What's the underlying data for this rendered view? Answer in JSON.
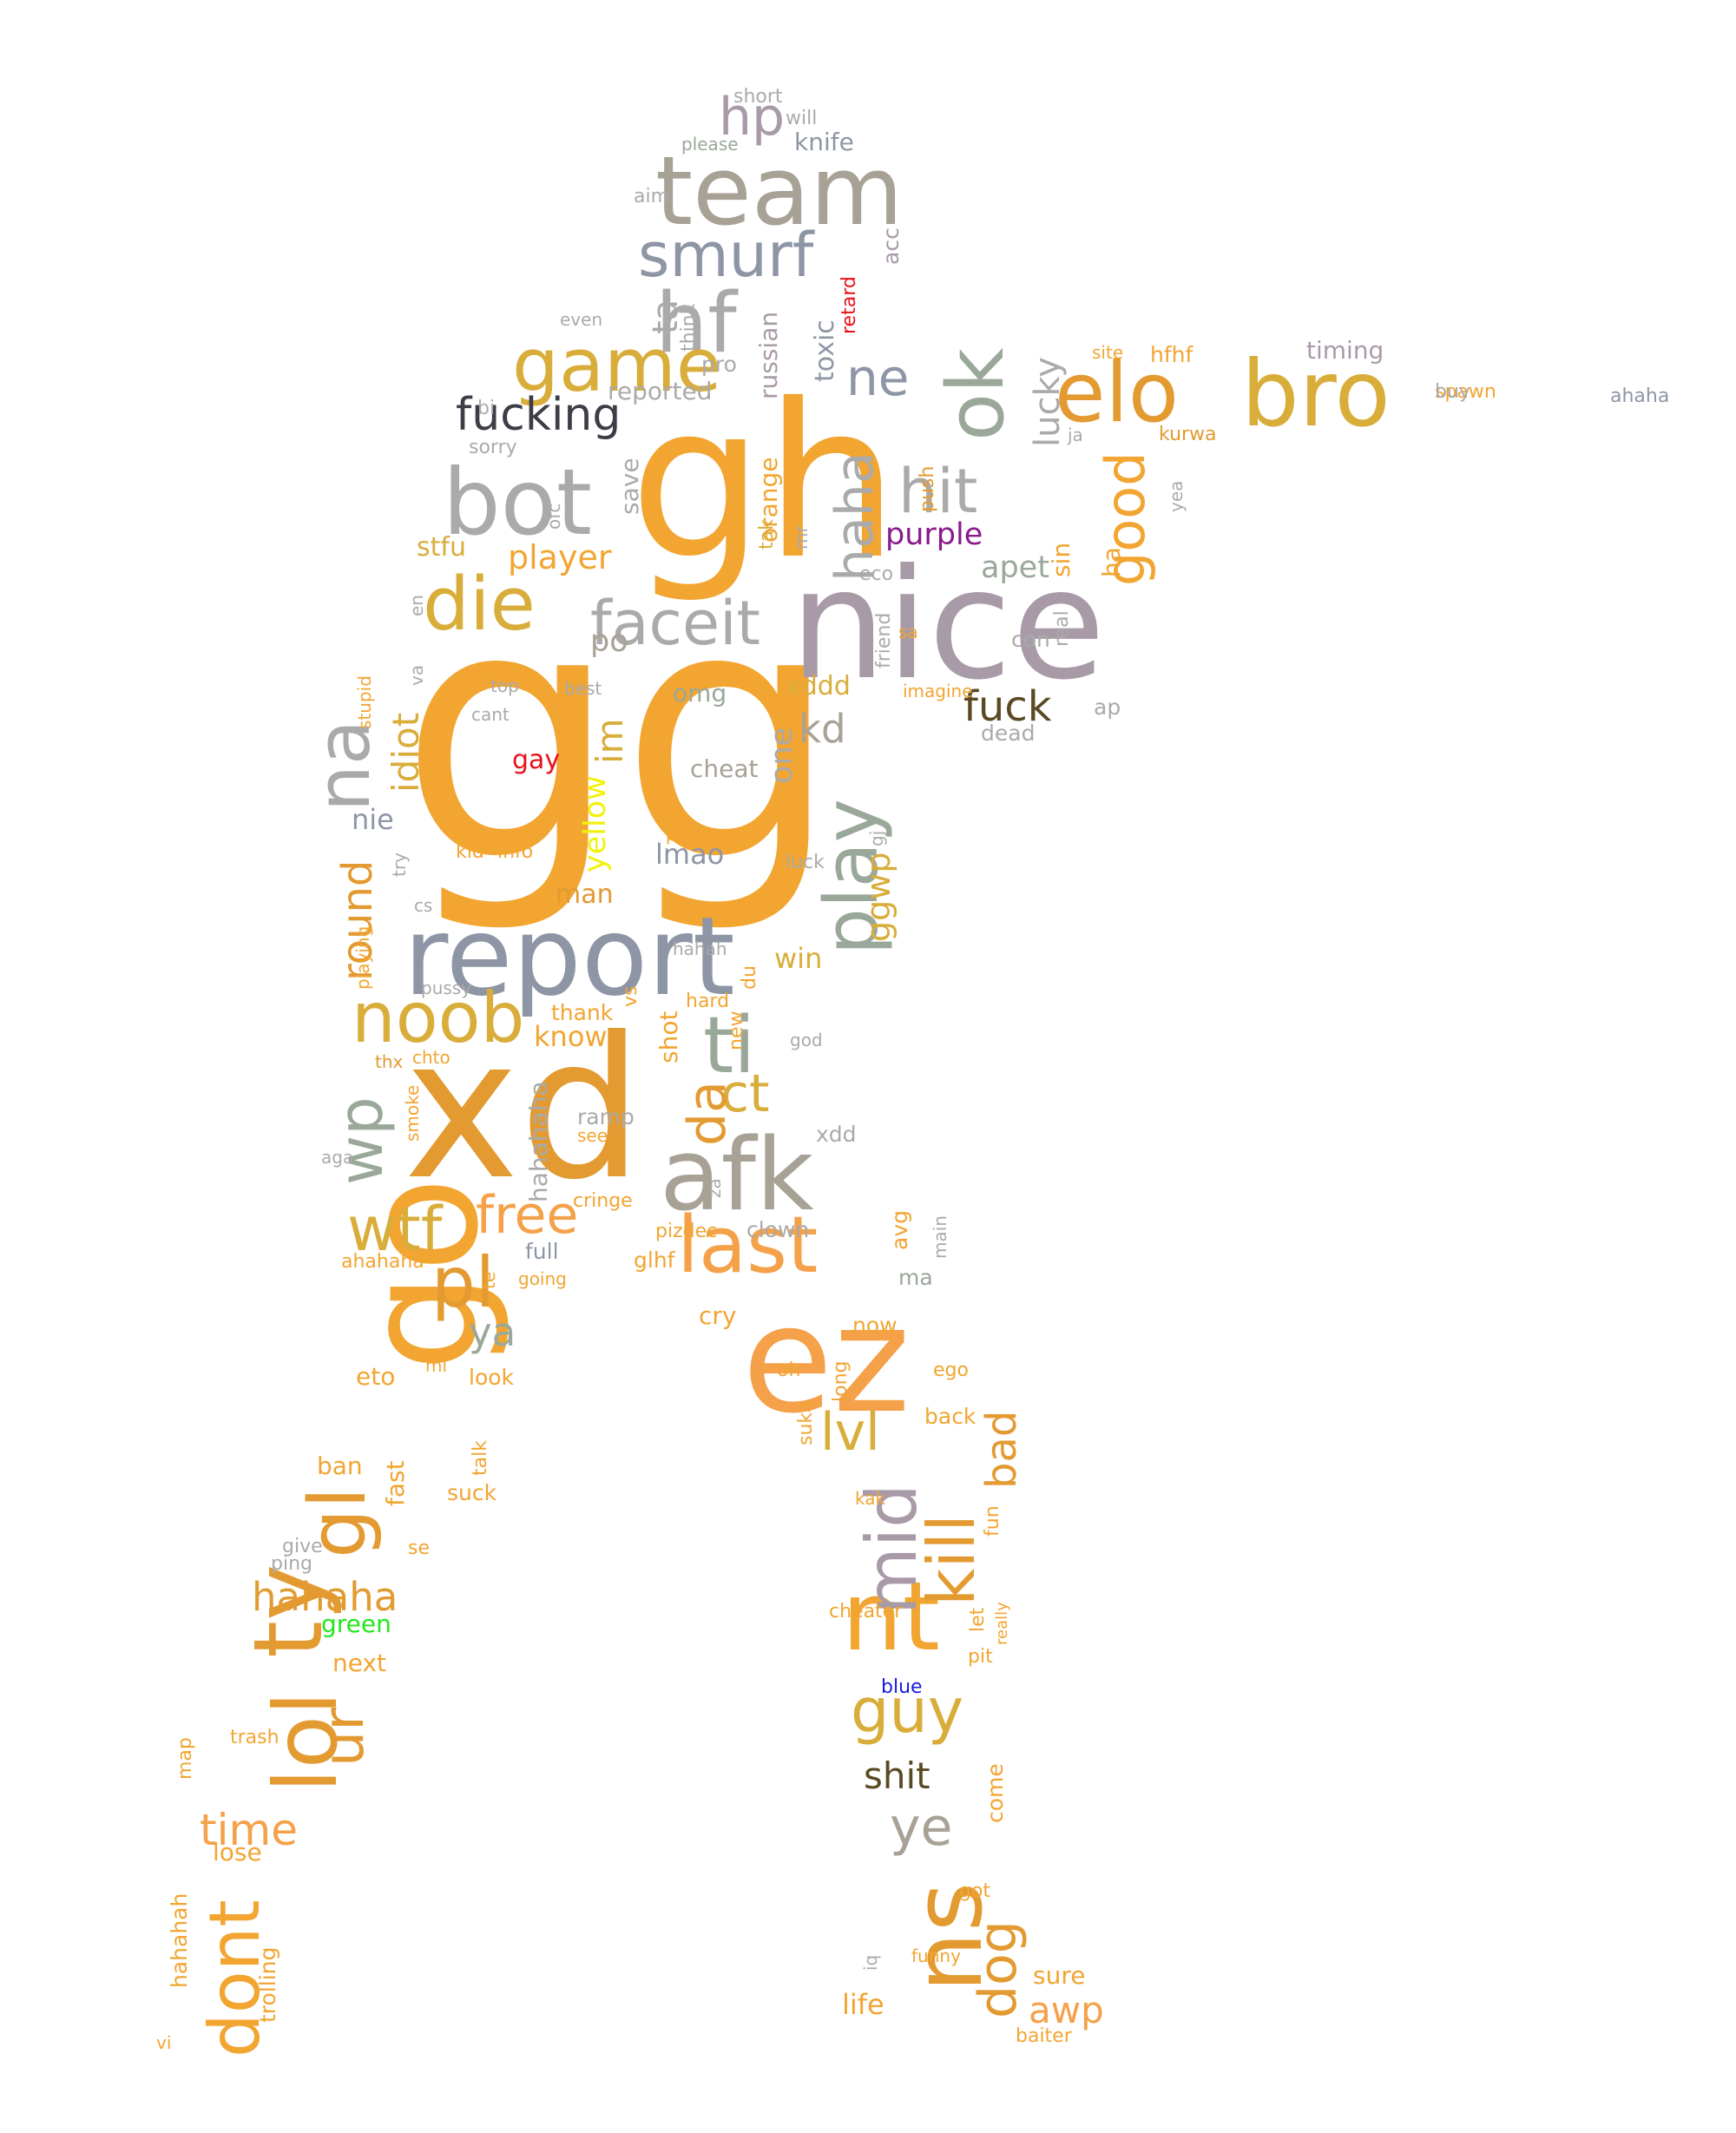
{
  "colors": {
    "orange": "#f2a531",
    "dark_orange": "#e39a31",
    "light_orange": "#f4a14a",
    "gold": "#d9ad3a",
    "mauve": "#a99aa8",
    "steel": "#8e96a6",
    "sage": "#9aa89a",
    "gray": "#a9aaa9",
    "taupe": "#a8a296",
    "charcoal": "#3d3d47",
    "brown": "#5a4a24",
    "red": "#e8111a",
    "purple": "#8a1a8a",
    "yellow": "#f2f20e",
    "green": "#22e81b",
    "blue": "#1a1ae0"
  },
  "words": [
    {
      "t": "gg",
      "c": "orange"
    },
    {
      "t": "gh",
      "c": "orange"
    },
    {
      "t": "nice",
      "c": "mauve"
    },
    {
      "t": "xd",
      "c": "dark_orange"
    },
    {
      "t": "report",
      "c": "steel"
    },
    {
      "t": "ez",
      "c": "light_orange"
    },
    {
      "t": "go",
      "c": "orange"
    },
    {
      "t": "team",
      "c": "taupe"
    },
    {
      "t": "bot",
      "c": "gray"
    },
    {
      "t": "bro",
      "c": "gold"
    },
    {
      "t": "elo",
      "c": "dark_orange"
    },
    {
      "t": "hf",
      "c": "gray"
    },
    {
      "t": "smurf",
      "c": "steel"
    },
    {
      "t": "game",
      "c": "gold"
    },
    {
      "t": "die",
      "c": "gold"
    },
    {
      "t": "faceit",
      "c": "gray"
    },
    {
      "t": "afk",
      "c": "taupe"
    },
    {
      "t": "noob",
      "c": "gold"
    },
    {
      "t": "ns",
      "c": "dark_orange"
    },
    {
      "t": "nt",
      "c": "orange"
    },
    {
      "t": "lol",
      "c": "dark_orange"
    },
    {
      "t": "ty",
      "c": "dark_orange"
    },
    {
      "t": "dont",
      "c": "orange"
    },
    {
      "t": "last",
      "c": "light_orange"
    },
    {
      "t": "play",
      "c": "sage"
    },
    {
      "t": "ok",
      "c": "sage"
    },
    {
      "t": "hit",
      "c": "gray"
    },
    {
      "t": "na",
      "c": "gray"
    },
    {
      "t": "ti",
      "c": "sage"
    },
    {
      "t": "mid",
      "c": "mauve"
    },
    {
      "t": "kill",
      "c": "dark_orange"
    },
    {
      "t": "guy",
      "c": "gold"
    },
    {
      "t": "pl",
      "c": "dark_orange"
    },
    {
      "t": "wtf",
      "c": "gold"
    },
    {
      "t": "gl",
      "c": "dark_orange"
    },
    {
      "t": "free",
      "c": "light_orange"
    },
    {
      "t": "fucking",
      "c": "charcoal"
    },
    {
      "t": "haha",
      "c": "gray"
    },
    {
      "t": "good",
      "c": "orange"
    },
    {
      "t": "ne",
      "c": "steel"
    },
    {
      "t": "hp",
      "c": "mauve"
    },
    {
      "t": "ct",
      "c": "gold"
    },
    {
      "t": "wp",
      "c": "sage"
    },
    {
      "t": "da",
      "c": "dark_orange"
    },
    {
      "t": "fuck",
      "c": "brown"
    },
    {
      "t": "kd",
      "c": "taupe"
    },
    {
      "t": "ur",
      "c": "dark_orange"
    },
    {
      "t": "hahaha",
      "c": "dark_orange"
    },
    {
      "t": "time",
      "c": "light_orange"
    },
    {
      "t": "ye",
      "c": "taupe"
    },
    {
      "t": "shit",
      "c": "brown"
    },
    {
      "t": "dog",
      "c": "dark_orange"
    },
    {
      "t": "awp",
      "c": "light_orange"
    },
    {
      "t": "lvl",
      "c": "gold"
    },
    {
      "t": "bad",
      "c": "dark_orange"
    },
    {
      "t": "lucky",
      "c": "gray"
    },
    {
      "t": "idiot",
      "c": "gold"
    },
    {
      "t": "round",
      "c": "dark_orange"
    },
    {
      "t": "player",
      "c": "orange"
    },
    {
      "t": "stfu",
      "c": "gold"
    },
    {
      "t": "apet",
      "c": "sage"
    },
    {
      "t": "purple",
      "c": "purple"
    },
    {
      "t": "ya",
      "c": "sage"
    },
    {
      "t": "im",
      "c": "gold"
    },
    {
      "t": "yellow",
      "c": "yellow"
    },
    {
      "t": "gay",
      "c": "red"
    },
    {
      "t": "green",
      "c": "green"
    },
    {
      "t": "blue",
      "c": "blue"
    },
    {
      "t": "retard",
      "c": "red"
    },
    {
      "t": "lmao",
      "c": "steel"
    },
    {
      "t": "man",
      "c": "dark_orange"
    },
    {
      "t": "know",
      "c": "orange"
    },
    {
      "t": "win",
      "c": "gold"
    },
    {
      "t": "ggwp",
      "c": "gold"
    },
    {
      "t": "one",
      "c": "gray"
    },
    {
      "t": "xddd",
      "c": "gold"
    },
    {
      "t": "po",
      "c": "taupe"
    },
    {
      "t": "omg",
      "c": "sage"
    },
    {
      "t": "cheat",
      "c": "taupe"
    },
    {
      "t": "nie",
      "c": "steel"
    },
    {
      "t": "toxic",
      "c": "steel"
    },
    {
      "t": "russian",
      "c": "mauve"
    },
    {
      "t": "ta",
      "c": "gray"
    },
    {
      "t": "think",
      "c": "gray"
    },
    {
      "t": "acc",
      "c": "mauve"
    },
    {
      "t": "knife",
      "c": "steel"
    },
    {
      "t": "will",
      "c": "gray"
    },
    {
      "t": "short",
      "c": "gray"
    },
    {
      "t": "please",
      "c": "sage"
    },
    {
      "t": "aim",
      "c": "gray"
    },
    {
      "t": "even",
      "c": "gray"
    },
    {
      "t": "pro",
      "c": "gray"
    },
    {
      "t": "reported",
      "c": "gray"
    },
    {
      "t": "sorry",
      "c": "gray"
    },
    {
      "t": "bi",
      "c": "gray"
    },
    {
      "t": "save",
      "c": "gray"
    },
    {
      "t": "ofc",
      "c": "gray"
    },
    {
      "t": "orange",
      "c": "orange"
    },
    {
      "t": "tak",
      "c": "gold"
    },
    {
      "t": "mr",
      "c": "gray"
    },
    {
      "t": "push",
      "c": "dark_orange"
    },
    {
      "t": "eco",
      "c": "gray"
    },
    {
      "t": "friend",
      "c": "gray"
    },
    {
      "t": "sa",
      "c": "orange"
    },
    {
      "t": "imagine",
      "c": "orange"
    },
    {
      "t": "con",
      "c": "gray"
    },
    {
      "t": "real",
      "c": "gray"
    },
    {
      "t": "sin",
      "c": "orange"
    },
    {
      "t": "ha",
      "c": "orange"
    },
    {
      "t": "ap",
      "c": "gray"
    },
    {
      "t": "dead",
      "c": "gray"
    },
    {
      "t": "ja",
      "c": "gray"
    },
    {
      "t": "site",
      "c": "orange"
    },
    {
      "t": "hfhf",
      "c": "orange"
    },
    {
      "t": "kurwa",
      "c": "dark_orange"
    },
    {
      "t": "timing",
      "c": "mauve"
    },
    {
      "t": "spawn",
      "c": "orange"
    },
    {
      "t": "buy",
      "c": "gray"
    },
    {
      "t": "ahaha",
      "c": "steel"
    },
    {
      "t": "yea",
      "c": "gray"
    },
    {
      "t": "en",
      "c": "gray"
    },
    {
      "t": "va",
      "c": "gray"
    },
    {
      "t": "stupid",
      "c": "orange"
    },
    {
      "t": "top",
      "c": "gray"
    },
    {
      "t": "best",
      "c": "gray"
    },
    {
      "t": "cant",
      "c": "gray"
    },
    {
      "t": "kid",
      "c": "orange"
    },
    {
      "t": "info",
      "c": "orange"
    },
    {
      "t": "palace",
      "c": "orange"
    },
    {
      "t": "luck",
      "c": "gray"
    },
    {
      "t": "gj",
      "c": "gray"
    },
    {
      "t": "try",
      "c": "gray"
    },
    {
      "t": "cs",
      "c": "gray"
    },
    {
      "t": "playing",
      "c": "orange"
    },
    {
      "t": "pussy",
      "c": "gray"
    },
    {
      "t": "hahah",
      "c": "gray"
    },
    {
      "t": "du",
      "c": "orange"
    },
    {
      "t": "hard",
      "c": "orange"
    },
    {
      "t": "vs",
      "c": "orange"
    },
    {
      "t": "thank",
      "c": "orange"
    },
    {
      "t": "shot",
      "c": "orange"
    },
    {
      "t": "new",
      "c": "orange"
    },
    {
      "t": "god",
      "c": "gray"
    },
    {
      "t": "thx",
      "c": "dark_orange"
    },
    {
      "t": "chto",
      "c": "orange"
    },
    {
      "t": "smoke",
      "c": "orange"
    },
    {
      "t": "hahahaha",
      "c": "gray"
    },
    {
      "t": "ramp",
      "c": "gray"
    },
    {
      "t": "see",
      "c": "orange"
    },
    {
      "t": "xdd",
      "c": "gray"
    },
    {
      "t": "aga",
      "c": "gray"
    },
    {
      "t": "za",
      "c": "gray"
    },
    {
      "t": "cringe",
      "c": "orange"
    },
    {
      "t": "clown",
      "c": "gray"
    },
    {
      "t": "pizdec",
      "c": "orange"
    },
    {
      "t": "main",
      "c": "gray"
    },
    {
      "t": "avg",
      "c": "orange"
    },
    {
      "t": "full",
      "c": "steel"
    },
    {
      "t": "going",
      "c": "orange"
    },
    {
      "t": "ahahaha",
      "c": "orange"
    },
    {
      "t": "te",
      "c": "orange"
    },
    {
      "t": "glhf",
      "c": "orange"
    },
    {
      "t": "ma",
      "c": "sage"
    },
    {
      "t": "cry",
      "c": "orange"
    },
    {
      "t": "now",
      "c": "orange"
    },
    {
      "t": "eto",
      "c": "orange"
    },
    {
      "t": "mi",
      "c": "orange"
    },
    {
      "t": "look",
      "c": "orange"
    },
    {
      "t": "oh",
      "c": "orange"
    },
    {
      "t": "long",
      "c": "orange"
    },
    {
      "t": "ego",
      "c": "orange"
    },
    {
      "t": "suka",
      "c": "orange"
    },
    {
      "t": "back",
      "c": "orange"
    },
    {
      "t": "ban",
      "c": "orange"
    },
    {
      "t": "talk",
      "c": "orange"
    },
    {
      "t": "fast",
      "c": "orange"
    },
    {
      "t": "suck",
      "c": "orange"
    },
    {
      "t": "kak",
      "c": "orange"
    },
    {
      "t": "fun",
      "c": "orange"
    },
    {
      "t": "se",
      "c": "orange"
    },
    {
      "t": "give",
      "c": "gray"
    },
    {
      "t": "ping",
      "c": "gray"
    },
    {
      "t": "cheater",
      "c": "orange"
    },
    {
      "t": "let",
      "c": "orange"
    },
    {
      "t": "really",
      "c": "orange"
    },
    {
      "t": "pit",
      "c": "orange"
    },
    {
      "t": "next",
      "c": "orange"
    },
    {
      "t": "trash",
      "c": "orange"
    },
    {
      "t": "map",
      "c": "orange"
    },
    {
      "t": "lose",
      "c": "orange"
    },
    {
      "t": "come",
      "c": "orange"
    },
    {
      "t": "hahahah",
      "c": "orange"
    },
    {
      "t": "trolling",
      "c": "orange"
    },
    {
      "t": "got",
      "c": "orange"
    },
    {
      "t": "funny",
      "c": "orange"
    },
    {
      "t": "iq",
      "c": "gray"
    },
    {
      "t": "sure",
      "c": "orange"
    },
    {
      "t": "life",
      "c": "orange"
    },
    {
      "t": "baiter",
      "c": "orange"
    },
    {
      "t": "vi",
      "c": "orange"
    }
  ]
}
